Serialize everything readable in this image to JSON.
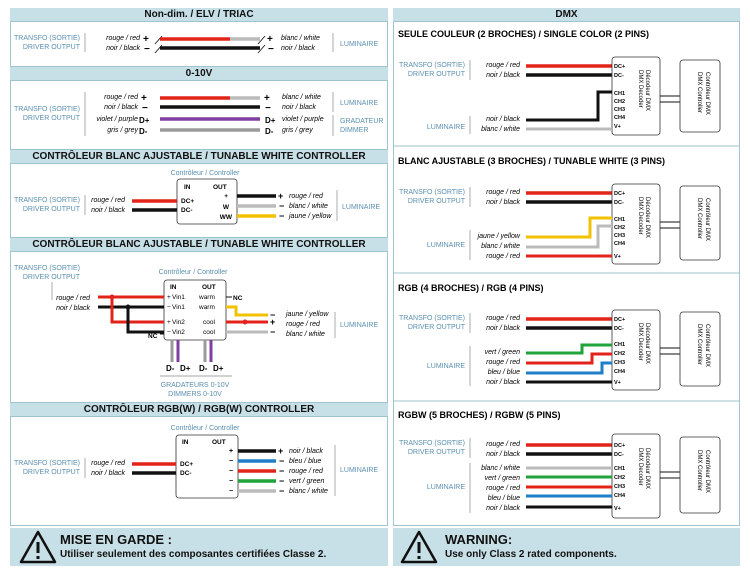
{
  "left": {
    "sec1": {
      "title": "Non-dim. / ELV / TRIAC"
    },
    "sec2": {
      "title": "0-10V"
    },
    "sec3": {
      "title": "CONTRÔLEUR BLANC AJUSTABLE / TUNABLE WHITE CONTROLLER"
    },
    "sec4": {
      "title": "CONTRÔLEUR BLANC AJUSTABLE / TUNABLE WHITE CONTROLLER"
    },
    "sec5": {
      "title": "CONTRÔLEUR RGB(W) / RGB(W) CONTROLLER"
    }
  },
  "right": {
    "title": "DMX",
    "sec1": {
      "title": "SEULE COULEUR (2 BROCHES) / SINGLE COLOR (2 PINS)"
    },
    "sec2": {
      "title": "BLANC AJUSTABLE (3 BROCHES) / TUNABLE WHITE (3 PINS)"
    },
    "sec3": {
      "title": "RGB (4 BROCHES) / RGB (4 PINS)"
    },
    "sec4": {
      "title": "RGBW (5 BROCHES) / RGBW (5 PINS)"
    }
  },
  "labels": {
    "driver_fr": "TRANSFO (SORTIE)",
    "driver_en": "DRIVER OUTPUT",
    "luminaire": "LUMINAIRE",
    "gradateur": "GRADATEUR",
    "dimmer": "DIMMER",
    "controleur": "Contrôleur / Controller",
    "grad_dimmers_fr": "GRADATEURS 0-10V",
    "grad_dimmers_en": "DIMMERS 0-10V",
    "in": "IN",
    "out": "OUT",
    "nc": "NC",
    "decoder": "Décodeur DMX",
    "decoder2": "DMX Decoder",
    "controller_fr": "Contrôleur DMX",
    "controller_en": "DMX Controller"
  },
  "wires": {
    "red": "rouge / red",
    "black": "noir / black",
    "white": "blanc / white",
    "violet": "violet / purple",
    "grey": "gris / grey",
    "yellow": "jaune / yellow",
    "blue": "bleu / blue",
    "green": "vert / green"
  },
  "pins": {
    "dc_plus": "DC+",
    "dc_minus": "DC-",
    "ch1": "CH1",
    "ch2": "CH2",
    "ch3": "CH3",
    "ch4": "CH4",
    "v_plus": "V+",
    "w": "W",
    "ww": "WW",
    "vin1_plus": "Vin1",
    "vin1_minus": "Vin1",
    "vin2_plus": "Vin2",
    "vin2_minus": "Vin2",
    "warm": "warm",
    "cool": "cool",
    "d_plus": "D+",
    "d_minus": "D-"
  },
  "warning": {
    "fr_title": "MISE EN GARDE :",
    "fr_text": "Utiliser seulement des composantes certifiées Classe 2.",
    "en_title": "WARNING:",
    "en_text": "Use only Class 2 rated components.",
    "icon": "warning-triangle-icon"
  },
  "colors": {
    "header_bg": "#c7dfe6",
    "accent_text": "#5a8fb0",
    "red": "#e2231a",
    "black": "#111111",
    "violet": "#7e3fa0",
    "grey": "#9a9a9a",
    "yellow": "#f2c200",
    "blue": "#1f7ec9",
    "green": "#1fa33a"
  }
}
